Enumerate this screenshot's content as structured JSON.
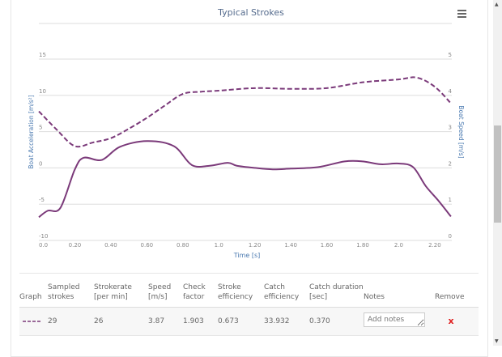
{
  "menu_icon": "hamburger-menu-icon",
  "chart_data": {
    "type": "line",
    "title": "Typical Strokes",
    "xlabel": "Time [s]",
    "ylabel_left": "Boat Acceleration [m/s²]",
    "ylabel_right": "Boat Speed [m/s]",
    "xlim": [
      0,
      2.295
    ],
    "ylim_left": [
      -10,
      15
    ],
    "ylim_right": [
      0,
      5
    ],
    "x_ticks": [
      "0.0",
      "0.20",
      "0.40",
      "0.60",
      "0.80",
      "1.0",
      "1.20",
      "1.40",
      "1.60",
      "1.80",
      "2.0",
      "2.20"
    ],
    "x_tick_values": [
      0,
      0.2,
      0.4,
      0.6,
      0.8,
      1.0,
      1.2,
      1.4,
      1.6,
      1.8,
      2.0,
      2.2
    ],
    "y_ticks_left": [
      "15",
      "10",
      "5",
      "0",
      "-5",
      "-10"
    ],
    "y_ticks_right": [
      "5",
      "4",
      "3",
      "2",
      "1",
      "0"
    ],
    "grid": true,
    "color": "#7b3a7a",
    "series": [
      {
        "name": "Boat Speed",
        "axis": "right",
        "style": "dashed",
        "x": [
          0,
          0.1,
          0.2,
          0.3,
          0.4,
          0.5,
          0.6,
          0.7,
          0.8,
          0.9,
          1.0,
          1.2,
          1.4,
          1.6,
          1.8,
          2.0,
          2.1,
          2.2,
          2.29
        ],
        "y": [
          3.56,
          3.05,
          2.6,
          2.7,
          2.82,
          3.08,
          3.38,
          3.72,
          4.04,
          4.1,
          4.13,
          4.2,
          4.18,
          4.2,
          4.36,
          4.44,
          4.49,
          4.24,
          3.78
        ]
      },
      {
        "name": "Boat Acceleration",
        "axis": "left",
        "style": "solid",
        "x": [
          0,
          0.05,
          0.12,
          0.2,
          0.25,
          0.35,
          0.45,
          0.6,
          0.75,
          0.85,
          0.95,
          1.05,
          1.1,
          1.2,
          1.3,
          1.4,
          1.55,
          1.7,
          1.8,
          1.9,
          2.0,
          2.08,
          2.15,
          2.22,
          2.29
        ],
        "y": [
          -6.8,
          -5.9,
          -5.5,
          -0.2,
          1.4,
          1.1,
          2.9,
          3.7,
          3.0,
          0.4,
          0.3,
          0.7,
          0.3,
          0,
          -0.2,
          -0.1,
          0.1,
          0.9,
          0.9,
          0.5,
          0.6,
          0.1,
          -2.5,
          -4.5,
          -6.7
        ]
      }
    ]
  },
  "table": {
    "headers": [
      "Graph",
      "Sampled strokes",
      "Strokerate [per min]",
      "Speed [m/s]",
      "Check factor",
      "Stroke efficiency",
      "Catch efficiency",
      "Catch duration [sec]",
      "Notes",
      "Remove"
    ],
    "row": {
      "sampled": "29",
      "strokerate": "26",
      "speed": "3.87",
      "check": "1.903",
      "stroke_eff": "0.673",
      "catch_eff": "33.932",
      "catch_dur": "0.370",
      "notes_placeholder": "Add notes",
      "remove": "x"
    }
  }
}
